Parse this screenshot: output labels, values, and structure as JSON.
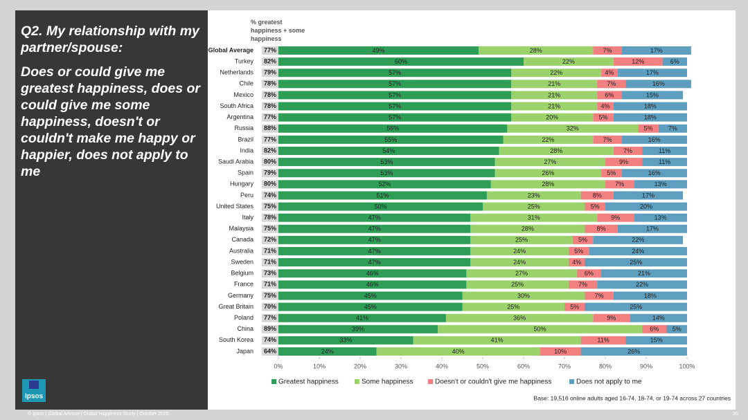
{
  "chart_data": {
    "type": "stacked-barh",
    "title": "Q2. My relationship with my partner/spouse:",
    "subtitle": "Does or could give me greatest happiness, does or could give me some happiness, doesn't or couldn't make me happy or happier, does not apply to me",
    "note": "Base: 19,516 online adults aged 16-74, 18-74, or 19-74 across 27 countries",
    "categories": [
      "Global Average",
      "Turkey",
      "Netherlands",
      "Chile",
      "Mexico",
      "South Africa",
      "Argentina",
      "Russia",
      "Brazil",
      "India",
      "Saudi Arabia",
      "Spain",
      "Hungary",
      "Peru",
      "United States",
      "Italy",
      "Malaysia",
      "Canada",
      "Australia",
      "Sweden",
      "Belgium",
      "France",
      "Germany",
      "Great Britain",
      "Poland",
      "China",
      "South Korea",
      "Japan"
    ],
    "totals": {
      "title": "% greatest happiness + some happiness",
      "values": [
        77,
        82,
        79,
        78,
        78,
        78,
        77,
        88,
        77,
        82,
        80,
        79,
        80,
        74,
        75,
        78,
        75,
        72,
        71,
        71,
        73,
        71,
        75,
        70,
        77,
        89,
        74,
        64
      ],
      "value_labels": [
        "77%",
        "82%",
        "79%",
        "78%",
        "78%",
        "78%",
        "77%",
        "88%",
        "77%",
        "82%",
        "80%",
        "79%",
        "80%",
        "74%",
        "75%",
        "78%",
        "75%",
        "72%",
        "71%",
        "71%",
        "73%",
        "71%",
        "75%",
        "70%",
        "77%",
        "89%",
        "74%",
        "64%"
      ]
    },
    "series": [
      {
        "name": "Greatest happiness",
        "color": "#2e9e57",
        "values": [
          49,
          60,
          57,
          57,
          57,
          57,
          57,
          56,
          55,
          54,
          53,
          53,
          52,
          51,
          50,
          47,
          47,
          47,
          47,
          47,
          46,
          46,
          45,
          45,
          41,
          39,
          33,
          24
        ],
        "value_labels": [
          "49%",
          "60%",
          "57%",
          "57%",
          "57%",
          "57%",
          "57%",
          "56%",
          "55%",
          "54%",
          "53%",
          "53%",
          "52%",
          "51%",
          "50%",
          "47%",
          "47%",
          "47%",
          "47%",
          "47%",
          "46%",
          "46%",
          "45%",
          "45%",
          "41%",
          "39%",
          "33%",
          "24%"
        ]
      },
      {
        "name": "Some happiness",
        "color": "#9bd26c",
        "values": [
          28,
          22,
          22,
          21,
          21,
          21,
          20,
          32,
          22,
          28,
          27,
          26,
          28,
          23,
          25,
          31,
          28,
          25,
          24,
          24,
          27,
          25,
          30,
          25,
          36,
          50,
          41,
          40
        ],
        "value_labels": [
          "28%",
          "22%",
          "22%",
          "21%",
          "21%",
          "21%",
          "20%",
          "32%",
          "22%",
          "28%",
          "27%",
          "26%",
          "28%",
          "23%",
          "25%",
          "31%",
          "28%",
          "25%",
          "24%",
          "24%",
          "27%",
          "25%",
          "30%",
          "25%",
          "36%",
          "50%",
          "41%",
          "40%"
        ]
      },
      {
        "name": "Doesn't or couldn't give me happiness",
        "color": "#f28080",
        "values": [
          7,
          12,
          4,
          7,
          6,
          4,
          5,
          5,
          7,
          7,
          9,
          5,
          7,
          8,
          5,
          9,
          8,
          5,
          5,
          4,
          6,
          7,
          7,
          5,
          9,
          6,
          11,
          10
        ],
        "value_labels": [
          "7%",
          "12%",
          "4%",
          "7%",
          "6%",
          "4%",
          "5%",
          "5%",
          "7%",
          "7%",
          "9%",
          "5%",
          "7%",
          "8%",
          "5%",
          "9%",
          "8%",
          "5%",
          "5%",
          "4%",
          "6%",
          "7%",
          "7%",
          "5%",
          "9%",
          "6%",
          "11%",
          "10%"
        ]
      },
      {
        "name": "Does not apply to me",
        "color": "#5e9fbf",
        "values": [
          17,
          6,
          17,
          16,
          15,
          18,
          18,
          7,
          16,
          11,
          11,
          16,
          13,
          17,
          20,
          13,
          17,
          22,
          24,
          25,
          21,
          22,
          18,
          25,
          14,
          5,
          15,
          26
        ],
        "value_labels": [
          "17%",
          "6%",
          "17%",
          "16%",
          "15%",
          "18%",
          "18%",
          "7%",
          "16%",
          "11%",
          "11%",
          "16%",
          "13%",
          "17%",
          "20%",
          "13%",
          "17%",
          "22%",
          "24%",
          "25%",
          "21%",
          "22%",
          "18%",
          "25%",
          "14%",
          "5%",
          "15%",
          "26%"
        ]
      }
    ],
    "xlim": [
      0,
      100
    ],
    "xticks": [
      {
        "value": 0,
        "label": "0%"
      },
      {
        "value": 10,
        "label": "10%"
      },
      {
        "value": 20,
        "label": "20%"
      },
      {
        "value": 30,
        "label": "30%"
      },
      {
        "value": 40,
        "label": "40%"
      },
      {
        "value": 50,
        "label": "50%"
      },
      {
        "value": 60,
        "label": "60%"
      },
      {
        "value": 70,
        "label": "70%"
      },
      {
        "value": 80,
        "label": "80%"
      },
      {
        "value": 90,
        "label": "90%"
      },
      {
        "value": 100,
        "label": "100%"
      }
    ],
    "legend": "bottom"
  },
  "footer": "© Ipsos | Global Advisor | Global Happiness Study | October 2020",
  "page_number": "20",
  "logo": "Ipsos"
}
